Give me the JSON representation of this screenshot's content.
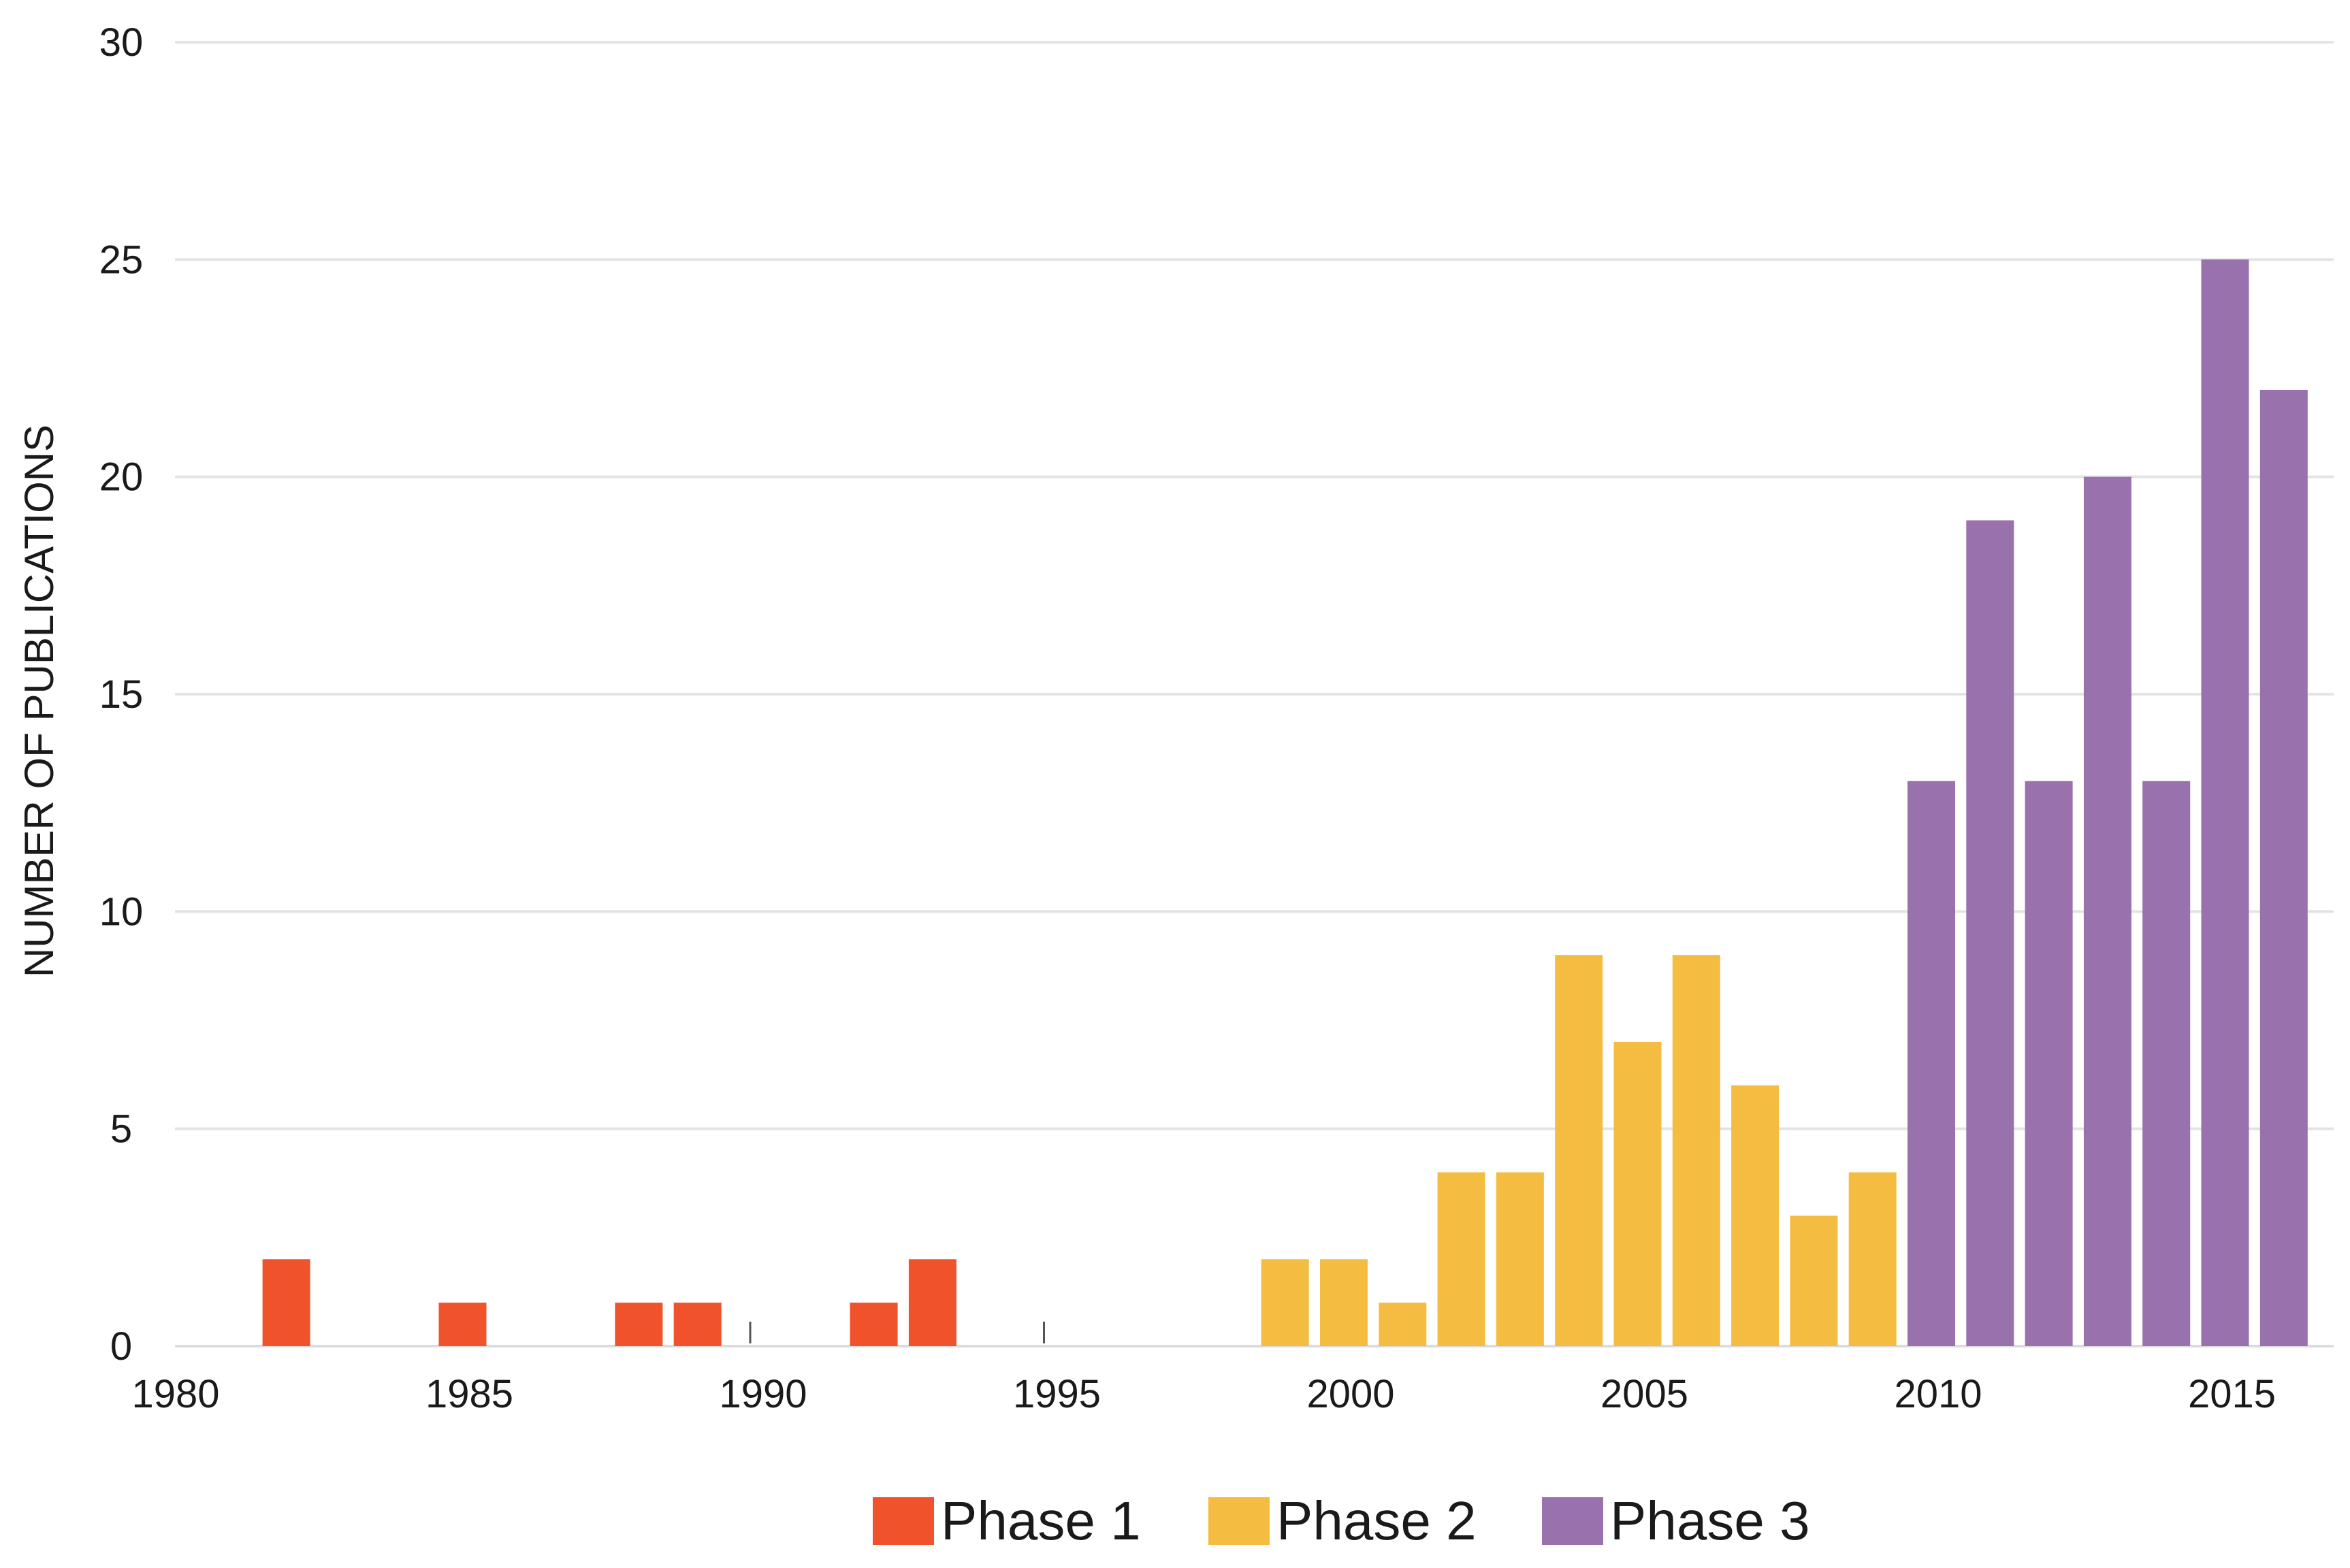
{
  "chart_data": {
    "type": "bar",
    "title": "",
    "xlabel": "",
    "ylabel": "NUMBER OF PUBLICATIONS",
    "xlim": [
      1980,
      2016.5
    ],
    "ylim": [
      0,
      30
    ],
    "x_ticks": [
      1980,
      1985,
      1990,
      1995,
      2000,
      2005,
      2010,
      2015
    ],
    "y_ticks": [
      0,
      5,
      10,
      15,
      20,
      25,
      30
    ],
    "grid": true,
    "legend_position": "bottom-center",
    "series": [
      {
        "name": "Phase 1",
        "color": "#f0522b",
        "x": [
          1982,
          1985,
          1988,
          1989,
          1992,
          1993
        ],
        "values": [
          2,
          1,
          1,
          1,
          1,
          2
        ]
      },
      {
        "name": "Phase 2",
        "color": "#f4bd41",
        "x": [
          1999,
          2000,
          2001,
          2002,
          2003,
          2004,
          2005,
          2006,
          2007,
          2008,
          2009
        ],
        "values": [
          2,
          2,
          1,
          4,
          4,
          9,
          7,
          9,
          6,
          3,
          4
        ]
      },
      {
        "name": "Phase 3",
        "color": "#9871ad",
        "x": [
          2010,
          2011,
          2012,
          2013,
          2014,
          2015,
          2016
        ],
        "values": [
          13,
          19,
          13,
          20,
          13,
          25,
          22
        ]
      }
    ]
  }
}
